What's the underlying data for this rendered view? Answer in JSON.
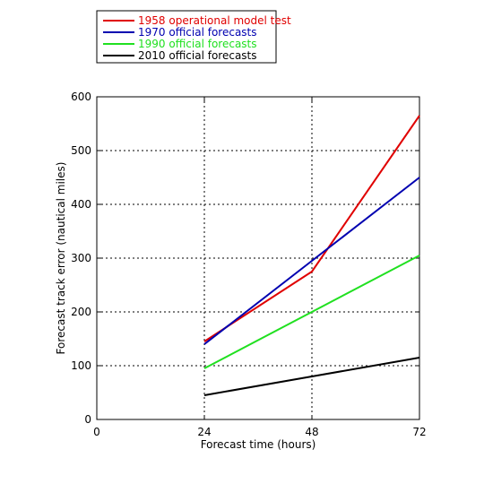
{
  "chart_data": {
    "type": "line",
    "title": "",
    "xlabel": "Forecast time (hours)",
    "ylabel": "Forecast track error (nautical miles)",
    "xlim": [
      0,
      72
    ],
    "ylim": [
      0,
      600
    ],
    "xticks": [
      0,
      24,
      48,
      72
    ],
    "yticks": [
      0,
      100,
      200,
      300,
      400,
      500,
      600
    ],
    "grid": true,
    "legend": "top-left, outside plot",
    "series": [
      {
        "name": "1958 operational model test",
        "color": "#e00000",
        "x": [
          24,
          48,
          72
        ],
        "y": [
          145,
          275,
          565
        ]
      },
      {
        "name": "1970 official forecasts",
        "color": "#0000b0",
        "x": [
          24,
          48,
          72
        ],
        "y": [
          140,
          295,
          450
        ]
      },
      {
        "name": "1990 official forecasts",
        "color": "#20e020",
        "x": [
          24,
          48,
          72
        ],
        "y": [
          95,
          200,
          305
        ]
      },
      {
        "name": "2010 official forecasts",
        "color": "#000000",
        "x": [
          24,
          48,
          72
        ],
        "y": [
          45,
          80,
          115
        ]
      }
    ]
  }
}
